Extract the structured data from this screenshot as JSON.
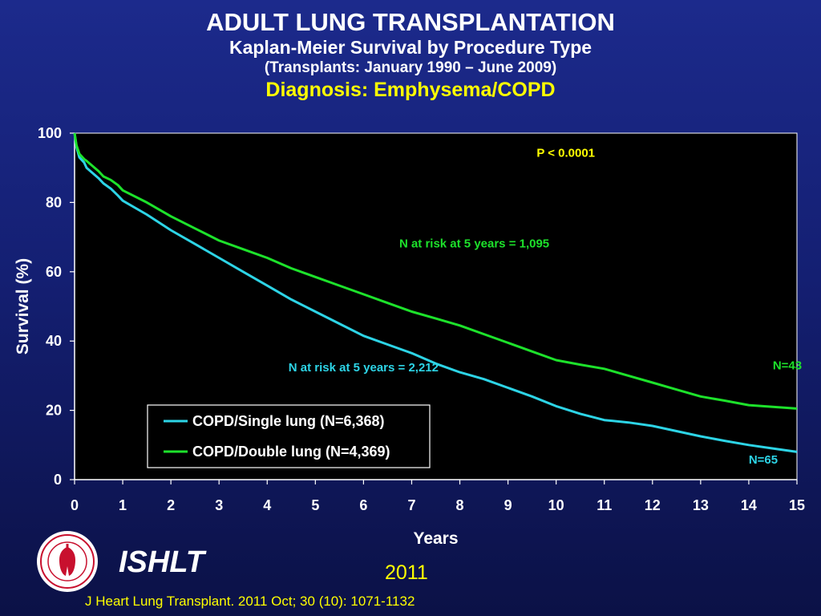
{
  "header": {
    "title": "ADULT LUNG TRANSPLANTATION",
    "subtitle": "Kaplan-Meier Survival by Procedure Type",
    "period": "(Transplants: January 1990 – June 2009)",
    "diagnosis": "Diagnosis: Emphysema/COPD"
  },
  "footer": {
    "org": "ISHLT",
    "year": "2011",
    "citation": "J Heart Lung Transplant. 2011 Oct; 30 (10): 1071-1132"
  },
  "colors": {
    "single": "#2dd4e6",
    "double": "#1de22b",
    "p_value": "#ffff00",
    "plot_bg": "#000000"
  },
  "chart_data": {
    "type": "line",
    "xlabel": "Years",
    "ylabel": "Survival (%)",
    "xlim": [
      0,
      15
    ],
    "ylim": [
      0,
      100
    ],
    "xticks": [
      0,
      1,
      2,
      3,
      4,
      5,
      6,
      7,
      8,
      9,
      10,
      11,
      12,
      13,
      14,
      15
    ],
    "yticks": [
      0,
      20,
      40,
      60,
      80,
      100
    ],
    "grid": false,
    "legend_position": "bottom-left",
    "series": [
      {
        "name": "COPD/Single lung (N=6,368)",
        "color": "#2dd4e6",
        "x": [
          0,
          0.04,
          0.1,
          0.2,
          0.25,
          0.5,
          0.6,
          0.75,
          0.9,
          1,
          1.5,
          2,
          2.5,
          3,
          3.5,
          4,
          4.5,
          5,
          5.5,
          6,
          6.5,
          7,
          7.5,
          8,
          8.5,
          9,
          9.5,
          10,
          10.5,
          11,
          11.5,
          12,
          12.5,
          13,
          13.5,
          14,
          14.5,
          15
        ],
        "y": [
          100,
          96,
          93,
          91.5,
          90,
          87,
          85.5,
          84,
          82,
          80.5,
          76.5,
          72,
          68,
          64,
          60,
          56,
          52,
          48.5,
          45,
          41.5,
          39,
          36.5,
          33.5,
          31,
          29,
          26.5,
          24,
          21.2,
          19,
          17.2,
          16.5,
          15.5,
          14,
          12.5,
          11.2,
          10,
          9,
          8
        ]
      },
      {
        "name": "COPD/Double lung (N=4,369)",
        "color": "#1de22b",
        "x": [
          0,
          0.04,
          0.1,
          0.2,
          0.25,
          0.5,
          0.6,
          0.75,
          0.9,
          1,
          1.5,
          2,
          2.5,
          3,
          3.5,
          4,
          4.5,
          5,
          5.5,
          6,
          6.5,
          7,
          7.5,
          8,
          8.5,
          9,
          9.5,
          10,
          10.5,
          11,
          11.5,
          12,
          12.5,
          13,
          13.5,
          14,
          14.5,
          15
        ],
        "y": [
          100,
          96.5,
          94,
          92.5,
          92,
          89,
          87.5,
          86.5,
          85,
          83.5,
          80,
          76,
          72.5,
          69,
          66.5,
          64,
          61,
          58.5,
          56,
          53.5,
          51,
          48.5,
          46.5,
          44.5,
          42,
          39.5,
          37,
          34.5,
          33.2,
          32,
          30,
          28,
          26,
          24,
          22.8,
          21.5,
          21,
          20.5
        ]
      }
    ],
    "annotations": [
      {
        "text": "P < 0.0001",
        "x": 10.2,
        "y": 93.2,
        "color": "#ffff00"
      },
      {
        "text": "N at risk at 5 years = 1,095",
        "x": 8.3,
        "y": 67,
        "color": "#1de22b"
      },
      {
        "text": "N at risk at 5 years = 2,212",
        "x": 6.0,
        "y": 31.2,
        "color": "#2dd4e6"
      },
      {
        "text": "N=43",
        "x": 14.8,
        "y": 31.8,
        "color": "#1de22b"
      },
      {
        "text": "N=65",
        "x": 14.3,
        "y": 4.6,
        "color": "#2dd4e6"
      }
    ]
  }
}
